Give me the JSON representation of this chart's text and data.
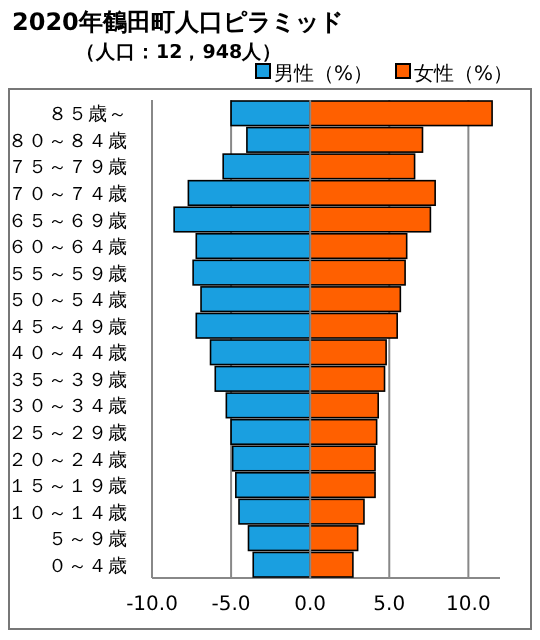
{
  "chart_data": {
    "type": "bar",
    "orientation": "horizontal",
    "title": "2020年鶴田町人口ピラミッド",
    "subtitle": "（人口：12，948人）",
    "categories": [
      "８５歳～",
      "８０～８４歳",
      "７５～７９歳",
      "７０～７４歳",
      "６５～６９歳",
      "６０～６４歳",
      "５５～５９歳",
      "５０～５４歳",
      "４５～４９歳",
      "４０～４４歳",
      "３５～３９歳",
      "３０～３４歳",
      "２５～２９歳",
      "２０～２４歳",
      "１５～１９歳",
      "１０～１４歳",
      "５～９歳",
      "０～４歳"
    ],
    "series": [
      {
        "name": "男性（%）",
        "color": "#1a9fe0",
        "values": [
          -5.0,
          -4.0,
          -5.5,
          -7.7,
          -8.6,
          -7.2,
          -7.4,
          -6.9,
          -7.2,
          -6.3,
          -6.0,
          -5.3,
          -5.0,
          -4.9,
          -4.7,
          -4.5,
          -3.9,
          -3.6
        ]
      },
      {
        "name": "女性（%）",
        "color": "#ff6000",
        "values": [
          11.5,
          7.1,
          6.6,
          7.9,
          7.6,
          6.1,
          6.0,
          5.7,
          5.5,
          4.8,
          4.7,
          4.3,
          4.2,
          4.1,
          4.1,
          3.4,
          3.0,
          2.7
        ]
      }
    ],
    "xlim": [
      -10,
      12
    ],
    "xticks": [
      {
        "value": -10,
        "label": "-10.0"
      },
      {
        "value": -5,
        "label": "-5.0"
      },
      {
        "value": 0,
        "label": "0.0"
      },
      {
        "value": 5,
        "label": "5.0"
      },
      {
        "value": 10,
        "label": "10.0"
      }
    ],
    "grid": "x",
    "legend": "top right",
    "stacked": true
  }
}
